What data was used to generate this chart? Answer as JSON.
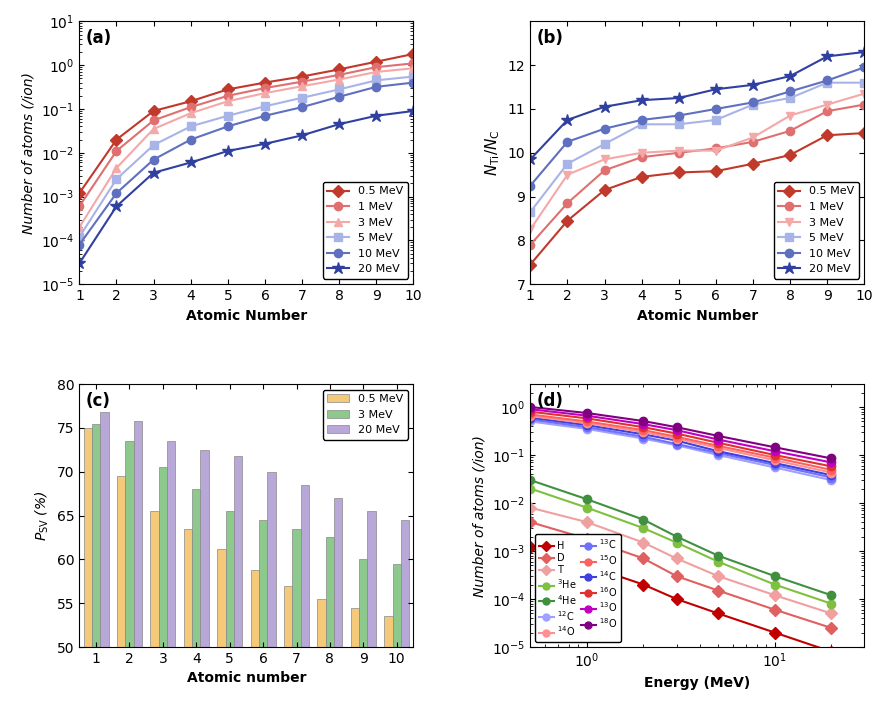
{
  "panel_a": {
    "title": "(a)",
    "xlabel": "Atomic Number",
    "ylabel": "Number of atoms (/ion)",
    "ylim": [
      1e-05,
      10
    ],
    "xlim": [
      1,
      10
    ],
    "series": [
      {
        "label": "0.5 MeV",
        "color": "#C0392B",
        "marker": "D",
        "values": [
          0.0012,
          0.02,
          0.09,
          0.15,
          0.28,
          0.4,
          0.55,
          0.8,
          1.2,
          1.8
        ]
      },
      {
        "label": "1 MeV",
        "color": "#E07070",
        "marker": "o",
        "values": [
          0.0006,
          0.011,
          0.055,
          0.11,
          0.2,
          0.3,
          0.42,
          0.6,
          0.9,
          1.1
        ]
      },
      {
        "label": "3 MeV",
        "color": "#F4A8A8",
        "marker": "^",
        "values": [
          0.0002,
          0.0045,
          0.035,
          0.08,
          0.15,
          0.23,
          0.33,
          0.47,
          0.7,
          0.85
        ]
      },
      {
        "label": "5 MeV",
        "color": "#A8B4E8",
        "marker": "s",
        "values": [
          0.00012,
          0.0025,
          0.015,
          0.04,
          0.07,
          0.115,
          0.18,
          0.28,
          0.45,
          0.55
        ]
      },
      {
        "label": "10 MeV",
        "color": "#6070C0",
        "marker": "o",
        "values": [
          8e-05,
          0.0012,
          0.007,
          0.02,
          0.04,
          0.07,
          0.11,
          0.19,
          0.32,
          0.4
        ]
      },
      {
        "label": "20 MeV",
        "color": "#3040A0",
        "marker": "*",
        "values": [
          3e-05,
          0.0006,
          0.0035,
          0.006,
          0.011,
          0.016,
          0.025,
          0.045,
          0.07,
          0.09
        ]
      }
    ]
  },
  "panel_b": {
    "title": "(b)",
    "xlabel": "Atomic Number",
    "ylabel": "$N_{\\mathrm{Ti}}/N_{\\mathrm{C}}$",
    "ylim": [
      7,
      13
    ],
    "xlim": [
      1,
      10
    ],
    "series": [
      {
        "label": "0.5 MeV",
        "color": "#C0392B",
        "marker": "D",
        "values": [
          7.45,
          8.45,
          9.15,
          9.45,
          9.55,
          9.58,
          9.75,
          9.95,
          10.4,
          10.45
        ]
      },
      {
        "label": "1 MeV",
        "color": "#E07070",
        "marker": "o",
        "values": [
          7.9,
          8.85,
          9.6,
          9.9,
          10.0,
          10.1,
          10.25,
          10.5,
          10.95,
          11.1
        ]
      },
      {
        "label": "3 MeV",
        "color": "#F4A8A8",
        "marker": "v",
        "values": [
          8.25,
          9.5,
          9.85,
          10.0,
          10.05,
          10.05,
          10.35,
          10.85,
          11.1,
          11.35
        ]
      },
      {
        "label": "5 MeV",
        "color": "#A8B4E8",
        "marker": "s",
        "values": [
          8.65,
          9.75,
          10.2,
          10.65,
          10.65,
          10.75,
          11.1,
          11.25,
          11.6,
          11.6
        ]
      },
      {
        "label": "10 MeV",
        "color": "#6070C0",
        "marker": "o",
        "values": [
          9.25,
          10.25,
          10.55,
          10.75,
          10.85,
          11.0,
          11.15,
          11.4,
          11.65,
          11.95
        ]
      },
      {
        "label": "20 MeV",
        "color": "#3040A0",
        "marker": "*",
        "values": [
          9.85,
          10.75,
          11.05,
          11.2,
          11.25,
          11.45,
          11.55,
          11.75,
          12.2,
          12.3
        ]
      }
    ]
  },
  "panel_c": {
    "title": "(c)",
    "xlabel": "Atomic number",
    "ylabel": "$P_{\\mathrm{SV}}$ (%)",
    "ylim": [
      50,
      80
    ],
    "xlim": [
      0.5,
      10.5
    ],
    "categories": [
      1,
      2,
      3,
      4,
      5,
      6,
      7,
      8,
      9,
      10
    ],
    "series": [
      {
        "label": "0.5 MeV",
        "color": "#F5C97A",
        "values": [
          75.0,
          69.5,
          65.5,
          63.5,
          61.2,
          58.8,
          57.0,
          55.5,
          54.5,
          53.5
        ]
      },
      {
        "label": "3 MeV",
        "color": "#8DC88D",
        "values": [
          75.5,
          73.5,
          70.5,
          68.0,
          65.5,
          64.5,
          63.5,
          62.5,
          60.0,
          59.5
        ]
      },
      {
        "label": "20 MeV",
        "color": "#B8A8D8",
        "values": [
          76.8,
          75.8,
          73.5,
          72.5,
          71.8,
          70.0,
          68.5,
          67.0,
          65.5,
          64.5
        ]
      }
    ]
  },
  "panel_d": {
    "title": "(d)",
    "xlabel": "Energy (MeV)",
    "ylabel": "Number of atoms (/ion)",
    "ylim": [
      1e-05,
      3
    ],
    "xlim": [
      0.5,
      30
    ],
    "series_group1": [
      {
        "label": "H",
        "color": "#C00000",
        "marker": "D",
        "x": [
          0.5,
          1,
          2,
          3,
          5,
          10,
          20
        ],
        "y": [
          0.0012,
          0.0005,
          0.0002,
          0.0001,
          5e-05,
          2e-05,
          8e-06
        ]
      },
      {
        "label": "D",
        "color": "#E06060",
        "marker": "D",
        "x": [
          0.5,
          1,
          2,
          3,
          5,
          10,
          20
        ],
        "y": [
          0.004,
          0.0018,
          0.0007,
          0.0003,
          0.00015,
          6e-05,
          2.5e-05
        ]
      },
      {
        "label": "T",
        "color": "#F0A0A0",
        "marker": "D",
        "x": [
          0.5,
          1,
          2,
          3,
          5,
          10,
          20
        ],
        "y": [
          0.008,
          0.004,
          0.0015,
          0.0007,
          0.0003,
          0.00012,
          5e-05
        ]
      }
    ],
    "series_group2": [
      {
        "label": "$^3$He",
        "color": "#80C040",
        "marker": "o",
        "x": [
          0.5,
          1,
          2,
          3,
          5,
          10,
          20
        ],
        "y": [
          0.02,
          0.008,
          0.003,
          0.0015,
          0.0006,
          0.0002,
          8e-05
        ]
      },
      {
        "label": "$^4$He",
        "color": "#409040",
        "marker": "o",
        "x": [
          0.5,
          1,
          2,
          3,
          5,
          10,
          20
        ],
        "y": [
          0.03,
          0.012,
          0.0045,
          0.002,
          0.0008,
          0.0003,
          0.00012
        ]
      }
    ],
    "series_group3": [
      {
        "label": "$^{12}$C",
        "color": "#A0A0FF",
        "marker": "o",
        "x": [
          0.5,
          1,
          2,
          3,
          5,
          10,
          20
        ],
        "y": [
          0.5,
          0.35,
          0.22,
          0.16,
          0.1,
          0.055,
          0.03
        ]
      },
      {
        "label": "$^{13}$C",
        "color": "#7070FF",
        "marker": "o",
        "x": [
          0.5,
          1,
          2,
          3,
          5,
          10,
          20
        ],
        "y": [
          0.55,
          0.38,
          0.24,
          0.17,
          0.11,
          0.062,
          0.034
        ]
      },
      {
        "label": "$^{14}$C",
        "color": "#4040E0",
        "marker": "o",
        "x": [
          0.5,
          1,
          2,
          3,
          5,
          10,
          20
        ],
        "y": [
          0.6,
          0.42,
          0.27,
          0.2,
          0.12,
          0.068,
          0.038
        ]
      },
      {
        "label": "$^{14}$O",
        "color": "#FF9090",
        "marker": "o",
        "x": [
          0.5,
          1,
          2,
          3,
          5,
          10,
          20
        ],
        "y": [
          0.65,
          0.46,
          0.3,
          0.22,
          0.14,
          0.078,
          0.043
        ]
      },
      {
        "label": "$^{15}$O",
        "color": "#FF6060",
        "marker": "o",
        "x": [
          0.5,
          1,
          2,
          3,
          5,
          10,
          20
        ],
        "y": [
          0.7,
          0.5,
          0.33,
          0.24,
          0.155,
          0.088,
          0.049
        ]
      },
      {
        "label": "$^{16}$O",
        "color": "#E03030",
        "marker": "o",
        "x": [
          0.5,
          1,
          2,
          3,
          5,
          10,
          20
        ],
        "y": [
          0.8,
          0.58,
          0.38,
          0.28,
          0.18,
          0.1,
          0.058
        ]
      },
      {
        "label": "$^{13}$O",
        "color": "#C000C0",
        "marker": "o",
        "x": [
          0.5,
          1,
          2,
          3,
          5,
          10,
          20
        ],
        "y": [
          0.9,
          0.66,
          0.44,
          0.33,
          0.21,
          0.12,
          0.07
        ]
      },
      {
        "label": "$^{18}$O",
        "color": "#800080",
        "marker": "o",
        "x": [
          0.5,
          1,
          2,
          3,
          5,
          10,
          20
        ],
        "y": [
          1.0,
          0.75,
          0.51,
          0.38,
          0.25,
          0.145,
          0.085
        ]
      }
    ]
  }
}
